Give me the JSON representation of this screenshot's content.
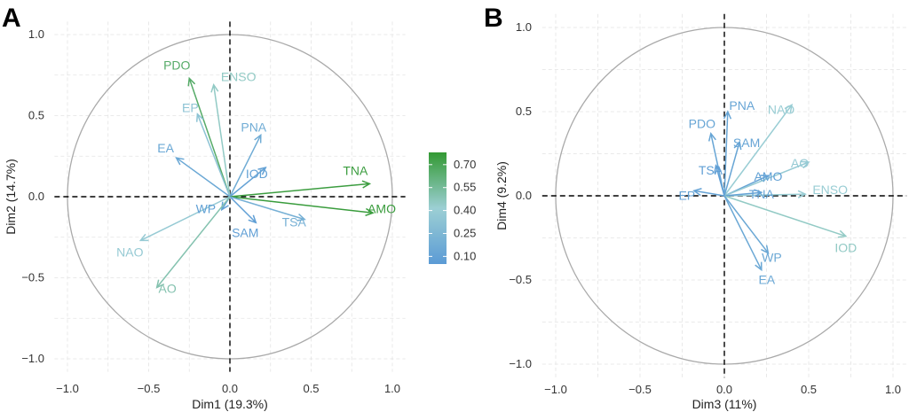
{
  "chart_data": [
    {
      "type": "pca-variables-correlation-circle",
      "panel_label": "A",
      "xlabel": "Dim1 (19.3%)",
      "ylabel": "Dim2 (14.7%)",
      "xlim": [
        -1.0,
        1.0
      ],
      "ylim": [
        -1.0,
        1.0
      ],
      "xticks": [
        "−1.0",
        "−0.5",
        "0.0",
        "0.5",
        "1.0"
      ],
      "yticks": [
        "−1.0",
        "−0.5",
        "0.0",
        "0.5",
        "1.0"
      ],
      "grid": true,
      "variables": [
        {
          "name": "PDO",
          "x": -0.25,
          "y": 0.73,
          "contrib": 0.66
        },
        {
          "name": "ENSO",
          "x": -0.1,
          "y": 0.69,
          "contrib": 0.45
        },
        {
          "name": "EP",
          "x": -0.2,
          "y": 0.51,
          "contrib": 0.33
        },
        {
          "name": "EA",
          "x": -0.33,
          "y": 0.24,
          "contrib": 0.14
        },
        {
          "name": "PNA",
          "x": 0.19,
          "y": 0.38,
          "contrib": 0.17
        },
        {
          "name": "IOD",
          "x": 0.22,
          "y": 0.18,
          "contrib": 0.1
        },
        {
          "name": "TNA",
          "x": 0.86,
          "y": 0.08,
          "contrib": 0.75
        },
        {
          "name": "AMO",
          "x": 0.88,
          "y": -0.1,
          "contrib": 0.76
        },
        {
          "name": "TSA",
          "x": 0.46,
          "y": -0.14,
          "contrib": 0.2
        },
        {
          "name": "SAM",
          "x": 0.16,
          "y": -0.16,
          "contrib": 0.08
        },
        {
          "name": "WP",
          "x": -0.05,
          "y": -0.08,
          "contrib": 0.09
        },
        {
          "name": "NAO",
          "x": -0.55,
          "y": -0.27,
          "contrib": 0.38
        },
        {
          "name": "AO",
          "x": -0.45,
          "y": -0.56,
          "contrib": 0.5
        }
      ]
    },
    {
      "type": "pca-variables-correlation-circle",
      "panel_label": "B",
      "xlabel": "Dim3 (11%)",
      "ylabel": "Dim4 (9.2%)",
      "xlim": [
        -1.0,
        1.0
      ],
      "ylim": [
        -1.0,
        1.0
      ],
      "xticks": [
        "−1.0",
        "−0.5",
        "0.0",
        "0.5",
        "1.0"
      ],
      "yticks": [
        "−1.0",
        "−0.5",
        "0.0",
        "0.5",
        "1.0"
      ],
      "grid": true,
      "variables": [
        {
          "name": "PNA",
          "x": 0.02,
          "y": 0.5,
          "contrib": 0.12
        },
        {
          "name": "NAO",
          "x": 0.4,
          "y": 0.54,
          "contrib": 0.4
        },
        {
          "name": "PDO",
          "x": -0.08,
          "y": 0.37,
          "contrib": 0.12
        },
        {
          "name": "SAM",
          "x": 0.09,
          "y": 0.32,
          "contrib": 0.12
        },
        {
          "name": "TSA",
          "x": -0.05,
          "y": 0.18,
          "contrib": 0.08
        },
        {
          "name": "AMO",
          "x": 0.26,
          "y": 0.12,
          "contrib": 0.1
        },
        {
          "name": "AO",
          "x": 0.5,
          "y": 0.2,
          "contrib": 0.38
        },
        {
          "name": "ENSO",
          "x": 0.48,
          "y": 0.01,
          "contrib": 0.4
        },
        {
          "name": "TNA",
          "x": 0.22,
          "y": 0.02,
          "contrib": 0.1
        },
        {
          "name": "EP",
          "x": -0.18,
          "y": 0.03,
          "contrib": 0.1
        },
        {
          "name": "IOD",
          "x": 0.72,
          "y": -0.24,
          "contrib": 0.45
        },
        {
          "name": "WP",
          "x": 0.26,
          "y": -0.34,
          "contrib": 0.14
        },
        {
          "name": "EA",
          "x": 0.22,
          "y": -0.44,
          "contrib": 0.14
        }
      ]
    }
  ],
  "legend": {
    "placement": "between-panels",
    "entries": [
      {
        "label": "0.70",
        "value": 0.7
      },
      {
        "label": "0.55",
        "value": 0.55
      },
      {
        "label": "0.40",
        "value": 0.4
      },
      {
        "label": "0.25",
        "value": 0.25
      },
      {
        "label": "0.10",
        "value": 0.1
      }
    ],
    "range": [
      0.05,
      0.78
    ]
  },
  "colors": {
    "low": "#5b9bd5",
    "mid": "#9ccfd4",
    "high": "#339933",
    "circle": "#aaaaaa",
    "grid": "#e3e3e3",
    "zero_line": "#000000"
  }
}
